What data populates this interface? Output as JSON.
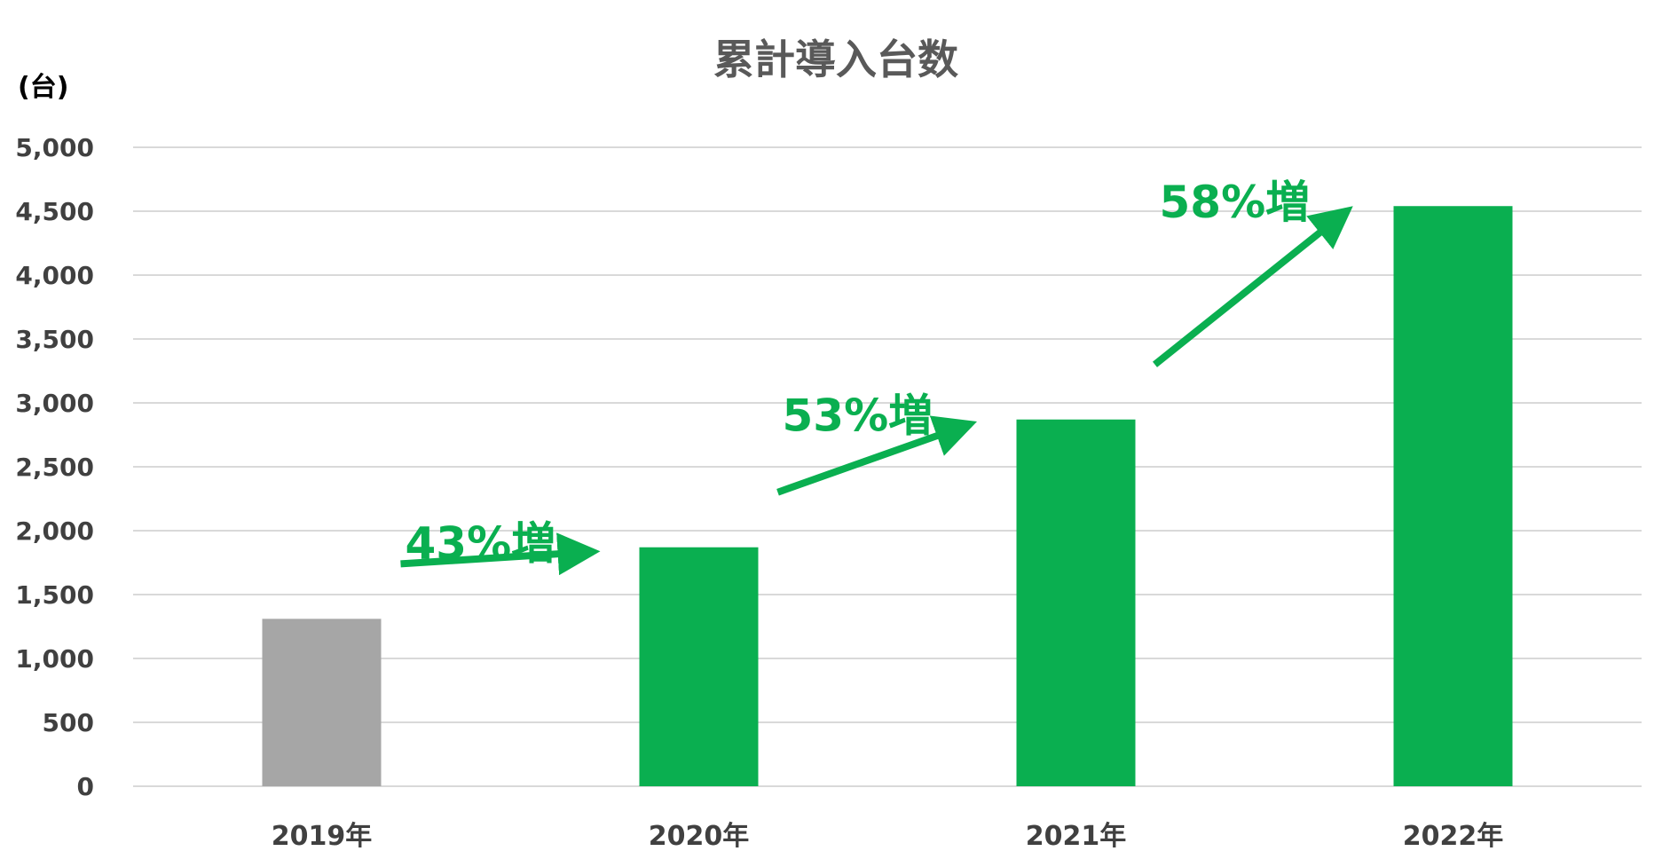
{
  "chart_data": {
    "type": "bar",
    "title": "累計導入台数",
    "ylabel": "(台)",
    "xlabel": "",
    "categories": [
      "2019年",
      "2020年",
      "2021年",
      "2022年"
    ],
    "values": [
      1310,
      1870,
      2870,
      4540
    ],
    "bar_colors": [
      "#a6a6a6",
      "#0aaf50",
      "#0aaf50",
      "#0aaf50"
    ],
    "ylim": [
      0,
      5000
    ],
    "yticks": [
      0,
      500,
      1000,
      1500,
      2000,
      2500,
      3000,
      3500,
      4000,
      4500,
      5000
    ],
    "ytick_labels": [
      "0",
      "500",
      "1,000",
      "1,500",
      "2,000",
      "2,500",
      "3,000",
      "3,500",
      "4,000",
      "4,500",
      "5,000"
    ],
    "grid": true,
    "annotations": [
      {
        "text": "43%増",
        "from": "2019年",
        "to": "2020年",
        "color": "#0aaf50"
      },
      {
        "text": "53%増",
        "from": "2020年",
        "to": "2021年",
        "color": "#0aaf50"
      },
      {
        "text": "58%増",
        "from": "2021年",
        "to": "2022年",
        "color": "#0aaf50"
      }
    ]
  }
}
